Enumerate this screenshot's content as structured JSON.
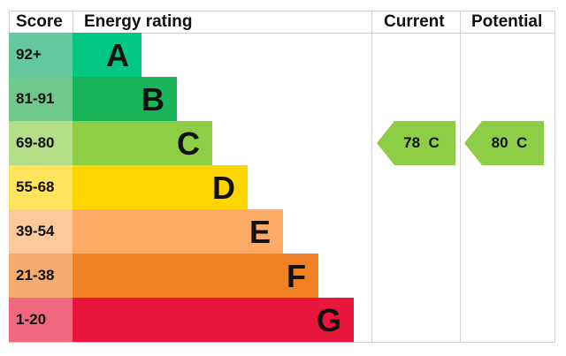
{
  "chart_data": {
    "type": "bar",
    "headers": {
      "score": "Score",
      "rating": "Energy rating",
      "current": "Current",
      "potential": "Potential"
    },
    "bands": [
      {
        "score": "92+",
        "letter": "A",
        "color": "#00c781",
        "score_color": "#64c7a0"
      },
      {
        "score": "81-91",
        "letter": "B",
        "color": "#19b459",
        "score_color": "#70c98c"
      },
      {
        "score": "69-80",
        "letter": "C",
        "color": "#8dce46",
        "score_color": "#b4dd87"
      },
      {
        "score": "55-68",
        "letter": "D",
        "color": "#ffd500",
        "score_color": "#ffe45c"
      },
      {
        "score": "39-54",
        "letter": "E",
        "color": "#fcaa65",
        "score_color": "#fdc89b"
      },
      {
        "score": "21-38",
        "letter": "F",
        "color": "#ef8023",
        "score_color": "#f5ab6e"
      },
      {
        "score": "1-20",
        "letter": "G",
        "color": "#e9153b",
        "score_color": "#f0687f"
      }
    ],
    "current": {
      "value": 78,
      "band": "C",
      "label": "78  C",
      "color": "#8dce46"
    },
    "potential": {
      "value": 80,
      "band": "C",
      "label": "80  C",
      "color": "#8dce46"
    }
  }
}
